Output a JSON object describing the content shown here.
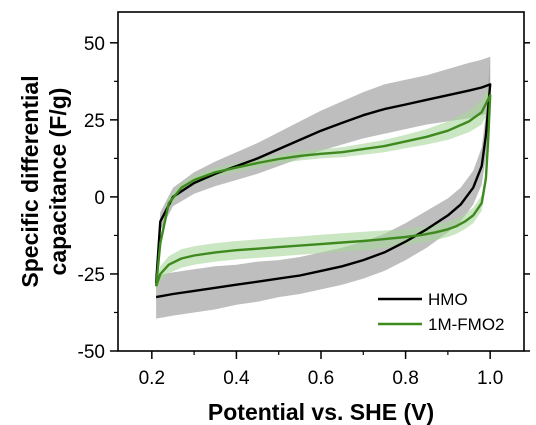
{
  "chart_data": {
    "type": "line",
    "title": "",
    "xlabel": "Potential vs. SHE (V)",
    "ylabel_line1": "Specific differential",
    "ylabel_line2": "capacitance (F/g)",
    "xlim": [
      0.12,
      1.08
    ],
    "ylim": [
      -50,
      60
    ],
    "xticks": [
      0.2,
      0.4,
      0.6,
      0.8,
      1.0
    ],
    "xtick_labels": [
      "0.2",
      "0.4",
      "0.6",
      "0.8",
      "1.0"
    ],
    "yticks": [
      -50,
      -25,
      0,
      25,
      50
    ],
    "ytick_labels": [
      "-50",
      "-25",
      "0",
      "25",
      "50"
    ],
    "grid": false,
    "legend_position": "bottom-right",
    "series": [
      {
        "name": "HMO",
        "color": "#000000",
        "band_color": "#a8a8a8",
        "anodic": {
          "x": [
            0.21,
            0.22,
            0.25,
            0.3,
            0.35,
            0.4,
            0.45,
            0.5,
            0.55,
            0.6,
            0.65,
            0.7,
            0.75,
            0.8,
            0.85,
            0.9,
            0.95,
            0.98,
            1.0
          ],
          "y": [
            -28,
            -8,
            0,
            4.5,
            7.5,
            10,
            12.5,
            15.5,
            18.5,
            21.5,
            24,
            26.5,
            28.5,
            30,
            31.5,
            33,
            34.5,
            35.5,
            36.5
          ],
          "err": [
            3,
            3,
            3,
            3.5,
            4,
            4.5,
            5,
            5.5,
            6,
            6.5,
            7,
            7.5,
            8,
            8,
            8,
            8.5,
            9,
            9,
            9
          ]
        },
        "cathodic": {
          "x": [
            1.0,
            0.99,
            0.98,
            0.96,
            0.93,
            0.9,
            0.85,
            0.8,
            0.75,
            0.7,
            0.65,
            0.6,
            0.55,
            0.5,
            0.45,
            0.4,
            0.35,
            0.3,
            0.25,
            0.21
          ],
          "y": [
            36.5,
            20,
            10,
            3,
            -2.5,
            -6,
            -10.5,
            -14.5,
            -18,
            -20.5,
            -22.5,
            -24,
            -25.5,
            -26.5,
            -27.5,
            -28.5,
            -29.5,
            -30.5,
            -31.5,
            -32.5
          ],
          "err": [
            9,
            7,
            6,
            5.5,
            5.5,
            5.5,
            6,
            6,
            6,
            6,
            6,
            6,
            6,
            6,
            6.5,
            6.5,
            7,
            7,
            7,
            7
          ]
        }
      },
      {
        "name": "1M-FMO2",
        "color": "#3f8a1f",
        "band_color": "#a8d69a",
        "anodic": {
          "x": [
            0.21,
            0.22,
            0.24,
            0.27,
            0.3,
            0.35,
            0.4,
            0.45,
            0.5,
            0.55,
            0.6,
            0.65,
            0.7,
            0.75,
            0.8,
            0.85,
            0.9,
            0.95,
            0.98,
            1.0
          ],
          "y": [
            -29,
            -15,
            -2,
            3,
            5.5,
            8,
            9.5,
            11,
            12.3,
            13.3,
            14,
            14.5,
            15.5,
            16.5,
            18,
            19.5,
            21.5,
            24.5,
            27.5,
            33
          ],
          "err": [
            2,
            2,
            1.8,
            1.5,
            1.5,
            1.5,
            1.5,
            1.5,
            1.5,
            1.5,
            1.5,
            1.6,
            1.8,
            2,
            2.2,
            2.5,
            3,
            3.5,
            4,
            4
          ]
        },
        "cathodic": {
          "x": [
            1.0,
            0.995,
            0.99,
            0.98,
            0.96,
            0.94,
            0.92,
            0.9,
            0.87,
            0.84,
            0.8,
            0.75,
            0.7,
            0.65,
            0.6,
            0.55,
            0.5,
            0.45,
            0.4,
            0.35,
            0.3,
            0.27,
            0.24,
            0.22,
            0.21
          ],
          "y": [
            33,
            18,
            6,
            -2,
            -6,
            -8,
            -9.5,
            -10.5,
            -11.5,
            -12.3,
            -13,
            -13.7,
            -14.3,
            -14.8,
            -15.3,
            -15.8,
            -16.3,
            -16.8,
            -17.3,
            -18,
            -19,
            -20,
            -22,
            -25,
            -29
          ],
          "err": [
            4,
            3,
            2.5,
            2.5,
            2.5,
            2.5,
            2.5,
            2.5,
            2.5,
            2.5,
            2.5,
            2.8,
            3,
            3,
            3,
            3,
            3,
            3,
            3,
            3,
            3,
            3,
            2.8,
            2.5,
            2
          ]
        }
      }
    ]
  }
}
